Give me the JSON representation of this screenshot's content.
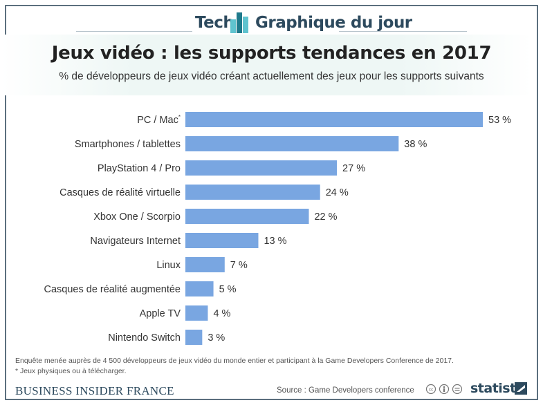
{
  "header": {
    "tech_label": "Tech",
    "graph_label": "Graphique du jour"
  },
  "title": "Jeux vidéo : les supports tendances en 2017",
  "subtitle": "% de développeurs de jeux vidéo créant actuellement des jeux pour les supports suivants",
  "chart_data": {
    "type": "bar",
    "orientation": "horizontal",
    "categories": [
      "PC / Mac*",
      "Smartphones / tablettes",
      "PlayStation 4 / Pro",
      "Casques de réalité virtuelle",
      "Xbox One / Scorpio",
      "Navigateurs Internet",
      "Linux",
      "Casques de réalité augmentée",
      "Apple TV",
      "Nintendo Switch"
    ],
    "values": [
      53,
      38,
      27,
      24,
      22,
      13,
      7,
      5,
      4,
      3
    ],
    "data_labels": [
      "53 %",
      "38 %",
      "27 %",
      "24 %",
      "22 %",
      "13 %",
      "7 %",
      "5 %",
      "4 %",
      "3 %"
    ],
    "xlim": [
      0,
      53
    ],
    "grid": false,
    "bar_color": "#79a6e1"
  },
  "footnotes": {
    "survey": "Enquête menée auprès de 4 500 développeurs de jeux vidéo du monde entier et participant à la Game Developers Conference de 2017.",
    "asterisk": "* Jeux physiques ou à télécharger."
  },
  "footer": {
    "publisher": "BUSINESS INSIDER FRANCE",
    "source": "Source : Game Developers conference",
    "brand": "statista"
  },
  "colors": {
    "header_text": "#2d4a5e",
    "logo_dark": "#1f7a8c",
    "logo_light": "#5fc3cf",
    "bar": "#79a6e1"
  },
  "icons": [
    "tech-logo-icon",
    "cc-license-icon",
    "statista-logo-icon"
  ]
}
